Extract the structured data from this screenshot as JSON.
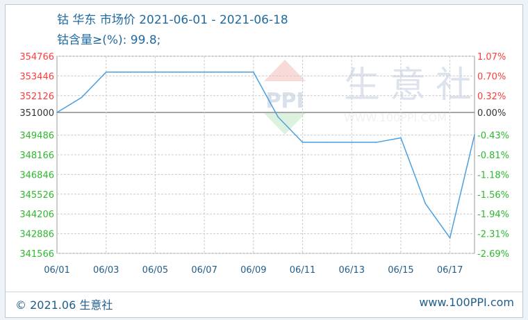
{
  "chart_data": {
    "type": "line",
    "title": "钴 华东 市场价 2021-06-01 - 2021-06-18",
    "subtitle": "钴含量≥(%): 99.8;",
    "categories": [
      "06/01",
      "06/02",
      "06/03",
      "06/04",
      "06/05",
      "06/06",
      "06/07",
      "06/08",
      "06/09",
      "06/10",
      "06/11",
      "06/12",
      "06/13",
      "06/14",
      "06/15",
      "06/16",
      "06/17",
      "06/18"
    ],
    "values": [
      351000,
      352000,
      353700,
      353700,
      353700,
      353700,
      353700,
      353700,
      353700,
      350700,
      349000,
      349000,
      349000,
      349000,
      349300,
      344900,
      342600,
      349500
    ],
    "x_tick_labels": [
      "06/01",
      "06/03",
      "06/05",
      "06/07",
      "06/09",
      "06/11",
      "06/13",
      "06/15",
      "06/17"
    ],
    "ylim": [
      341566,
      354766
    ],
    "y_tick_labels": [
      "354766",
      "353446",
      "352126",
      "351000",
      "349486",
      "348166",
      "346846",
      "345526",
      "344206",
      "342886",
      "341566"
    ],
    "y2_tick_labels": [
      "1.07%",
      "0.70%",
      "0.32%",
      "0.00%",
      "-0.43%",
      "-0.81%",
      "-1.18%",
      "-1.56%",
      "-1.94%",
      "-2.31%",
      "-2.69%"
    ],
    "baseline": 351000,
    "grid": true,
    "colors": {
      "line": "#4a9fe0",
      "up": "#ff3b3b",
      "down": "#2db82d",
      "zero": "#333333"
    }
  },
  "footer": {
    "copyright": "© 2021.06 生意社",
    "site": "www.100PPI.com"
  },
  "watermark": {
    "text": "生意社",
    "url": "WWW.100PPI.COM",
    "logo": "PPI"
  }
}
